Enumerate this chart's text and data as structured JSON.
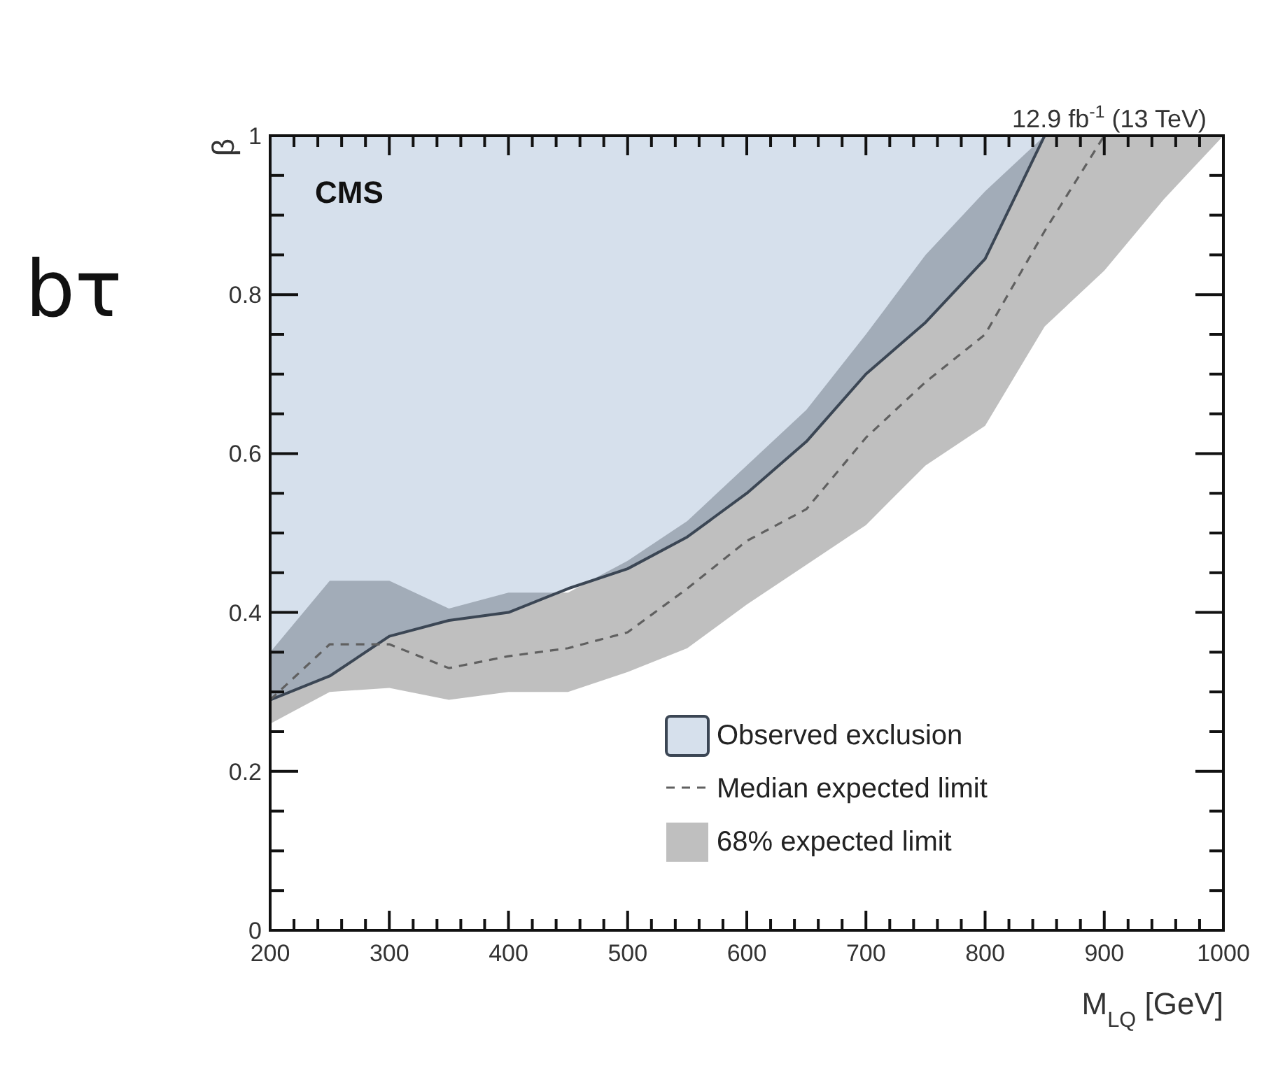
{
  "chart_data": {
    "type": "line",
    "title": "12.9 fb$^{-1}$ (13 TeV)",
    "xlabel": "M$_{LQ}$ [GeV]",
    "ylabel": "β",
    "annotations": [
      "CMS",
      "bτ",
      "68% expected limit"
    ],
    "xlim": [
      200,
      1000
    ],
    "xticks": [
      200,
      {
        "value": 220,
        "label": null
      },
      {
        "value": 240,
        "label": null
      },
      {
        "value": 260,
        "label": null
      },
      {
        "value": 280,
        "label": null
      },
      300,
      {
        "value": 320,
        "label": null
      },
      {
        "value": 340,
        "label": null
      },
      {
        "value": 360,
        "label": null
      },
      {
        "value": 380,
        "label": null
      },
      400,
      {
        "value": 420,
        "label": null
      },
      {
        "value": 440,
        "label": null
      },
      {
        "value": 460,
        "label": null
      },
      {
        "value": 480,
        "label": null
      },
      500,
      {
        "value": 520,
        "label": null
      },
      {
        "value": 540,
        "label": null
      },
      {
        "value": 560,
        "label": null
      },
      {
        "value": 580,
        "label": null
      },
      600,
      {
        "value": 620,
        "label": null
      },
      {
        "value": 640,
        "label": null
      },
      {
        "value": 660,
        "label": null
      },
      {
        "value": 680,
        "label": null
      },
      700,
      {
        "value": 720,
        "label": null
      },
      {
        "value": 740,
        "label": null
      },
      {
        "value": 760,
        "label": null
      },
      {
        "value": 780,
        "label": null
      },
      800,
      {
        "value": 820,
        "label": null
      },
      {
        "value": 840,
        "label": null
      },
      {
        "value": 860,
        "label": null
      },
      {
        "value": 880,
        "label": null
      },
      900,
      {
        "value": 920,
        "label": null
      },
      {
        "value": 940,
        "label": null
      },
      {
        "value": 960,
        "label": null
      },
      {
        "value": 980,
        "label": null
      },
      1000
    ],
    "ylim": [
      0,
      1
    ],
    "yticks": [
      0,
      {
        "value": 0.05,
        "label": null
      },
      {
        "value": 0.1,
        "label": null
      },
      {
        "value": 0.15,
        "label": null
      },
      0.2,
      {
        "value": 0.25,
        "label": null
      },
      {
        "value": 0.3,
        "label": null
      },
      {
        "value": 0.35,
        "label": null
      },
      0.4,
      {
        "value": 0.45,
        "label": null
      },
      {
        "value": 0.5,
        "label": null
      },
      {
        "value": 0.55,
        "label": null
      },
      0.6,
      {
        "value": 0.65,
        "label": null
      },
      {
        "value": 0.7,
        "label": null
      },
      {
        "value": 0.75,
        "label": null
      },
      0.8,
      {
        "value": 0.85,
        "label": null
      },
      {
        "value": 0.9,
        "label": null
      },
      {
        "value": 0.95,
        "label": null
      },
      1
    ],
    "legend": "bottom right",
    "grid": false,
    "series": [
      {
        "name": "Observed exclusion",
        "color": "#3b4654",
        "x": [
          200,
          250,
          300,
          350,
          400,
          450,
          500,
          550,
          600,
          650,
          700,
          750,
          800,
          850
        ],
        "values": [
          0.29,
          0.32,
          0.37,
          0.39,
          0.4,
          0.43,
          0.455,
          0.495,
          0.55,
          0.615,
          0.7,
          0.765,
          0.845,
          1.0
        ],
        "lower": [
          0.29,
          0.32,
          0.37,
          0.39,
          0.4,
          0.43,
          0.455,
          0.495,
          0.55,
          0.615,
          0.7,
          0.765,
          0.845,
          1.0
        ],
        "upper": [
          1,
          1,
          1,
          1,
          1,
          1,
          1,
          1,
          1,
          1,
          1,
          1,
          1,
          1
        ]
      },
      {
        "name": "Median expected limit",
        "line_style": "dashed",
        "color": "#606060",
        "x": [
          200,
          250,
          300,
          350,
          400,
          450,
          500,
          550,
          600,
          650,
          700,
          750,
          800,
          850,
          900,
          950,
          1000
        ],
        "values": [
          0.29,
          0.36,
          0.36,
          0.33,
          0.345,
          0.355,
          0.375,
          0.43,
          0.49,
          0.53,
          0.62,
          0.69,
          0.75,
          0.88,
          1.0,
          null,
          null
        ],
        "lower": [
          0.26,
          0.3,
          0.305,
          0.29,
          0.3,
          0.3,
          0.325,
          0.355,
          0.41,
          0.46,
          0.51,
          0.585,
          0.635,
          0.76,
          0.83,
          0.92,
          1.0
        ],
        "upper": [
          0.35,
          0.44,
          0.44,
          0.405,
          0.425,
          0.425,
          0.465,
          0.515,
          0.585,
          0.655,
          0.75,
          0.85,
          0.93,
          1.0,
          1.0,
          1.0,
          1.0
        ]
      }
    ]
  }
}
